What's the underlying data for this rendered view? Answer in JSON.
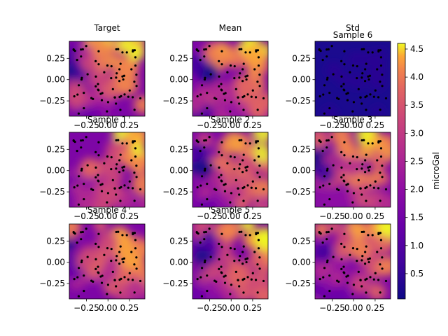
{
  "chart_data": {
    "type": "heatmap",
    "colormap": "plasma",
    "colorbar": {
      "label": "microGal",
      "range": [
        0.05,
        4.6
      ],
      "ticks": [
        "0.5",
        "1.0",
        "1.5",
        "2.0",
        "2.5",
        "3.0",
        "3.5",
        "4.0",
        "4.5"
      ]
    },
    "xlim": [
      -0.45,
      0.43
    ],
    "ylim": [
      -0.43,
      0.45
    ],
    "x_ticks": [
      "−0.25",
      "0.00",
      "0.25"
    ],
    "y_ticks": [
      "0.25",
      "0.00",
      "−0.25"
    ],
    "panels": [
      {
        "title": "Target"
      },
      {
        "title": "Mean"
      },
      {
        "title": "Std"
      },
      {
        "title": "Sample 1"
      },
      {
        "title": "Sample 2"
      },
      {
        "title": "Sample 3"
      },
      {
        "title": "Sample 4"
      },
      {
        "title": "Sample 5"
      },
      {
        "title": "Sample 6"
      }
    ]
  }
}
